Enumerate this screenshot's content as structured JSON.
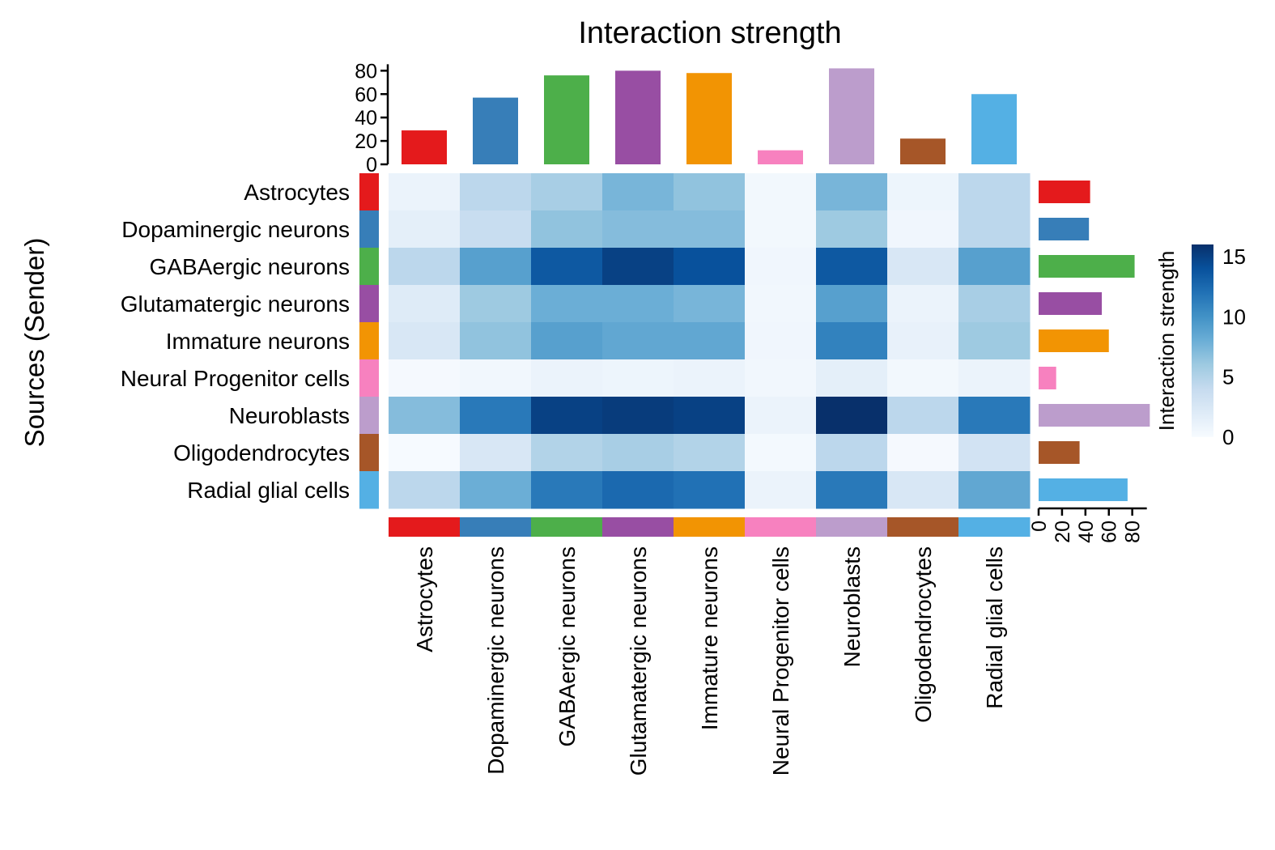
{
  "chart_data": {
    "type": "heatmap",
    "title": "Interaction strength",
    "ylabel": "Sources (Sender)",
    "xlabel": "",
    "rows": [
      "Astrocytes",
      "Dopaminergic neurons",
      "GABAergic neurons",
      "Glutamatergic neurons",
      "Immature neurons",
      "Neural Progenitor cells",
      "Neuroblasts",
      "Oligodendrocytes",
      "Radial glial cells"
    ],
    "columns": [
      "Astrocytes",
      "Dopaminergic neurons",
      "GABAergic neurons",
      "Glutamatergic neurons",
      "Immature neurons",
      "Neural Progenitor cells",
      "Neuroblasts",
      "Oligodendrocytes",
      "Radial glial cells"
    ],
    "group_colors": [
      "#E41A1C",
      "#377EB8",
      "#4DAF4A",
      "#984EA3",
      "#F29403",
      "#F781BF",
      "#BC9DCC",
      "#A65628",
      "#54B0E4"
    ],
    "values": [
      [
        1.0,
        4.5,
        5.5,
        7.5,
        6.5,
        0.4,
        7.5,
        0.8,
        4.5
      ],
      [
        1.5,
        3.8,
        6.5,
        7.0,
        7.0,
        0.4,
        6.0,
        0.6,
        4.5
      ],
      [
        4.5,
        9.0,
        13.5,
        15.0,
        14.0,
        0.6,
        13.5,
        2.5,
        9.0
      ],
      [
        2.0,
        6.0,
        8.0,
        8.0,
        7.5,
        0.5,
        9.0,
        1.0,
        5.5
      ],
      [
        2.5,
        6.5,
        9.0,
        8.5,
        8.5,
        0.6,
        11.0,
        1.2,
        6.0
      ],
      [
        0.2,
        0.5,
        1.0,
        0.8,
        1.0,
        0.5,
        1.5,
        0.4,
        1.0
      ],
      [
        7.0,
        11.5,
        15.0,
        15.3,
        15.0,
        1.0,
        16.0,
        4.5,
        11.5
      ],
      [
        0.1,
        2.5,
        5.0,
        5.5,
        5.0,
        0.3,
        4.5,
        0.2,
        3.0
      ],
      [
        4.5,
        8.0,
        11.5,
        12.5,
        12.0,
        1.0,
        11.5,
        2.5,
        8.5
      ]
    ],
    "col_totals": [
      29,
      57,
      76,
      80,
      78,
      12,
      82,
      22,
      60
    ],
    "row_totals": [
      44,
      43,
      82,
      54,
      60,
      15,
      95,
      35,
      76
    ],
    "col_bar_ticks": [
      0,
      20,
      40,
      60,
      80
    ],
    "row_bar_ticks": [
      0,
      20,
      40,
      60,
      80
    ],
    "bar_axis_range": [
      0,
      83
    ],
    "legend": {
      "title": "Interaction strength",
      "ticks": [
        0,
        5,
        10,
        15
      ],
      "range": [
        0,
        16
      ],
      "colors": [
        "#F7FBFF",
        "#DEEBF7",
        "#C6DBEF",
        "#9ECAE1",
        "#6BAED6",
        "#4292C6",
        "#2171B5",
        "#08519C",
        "#08306B"
      ]
    }
  }
}
